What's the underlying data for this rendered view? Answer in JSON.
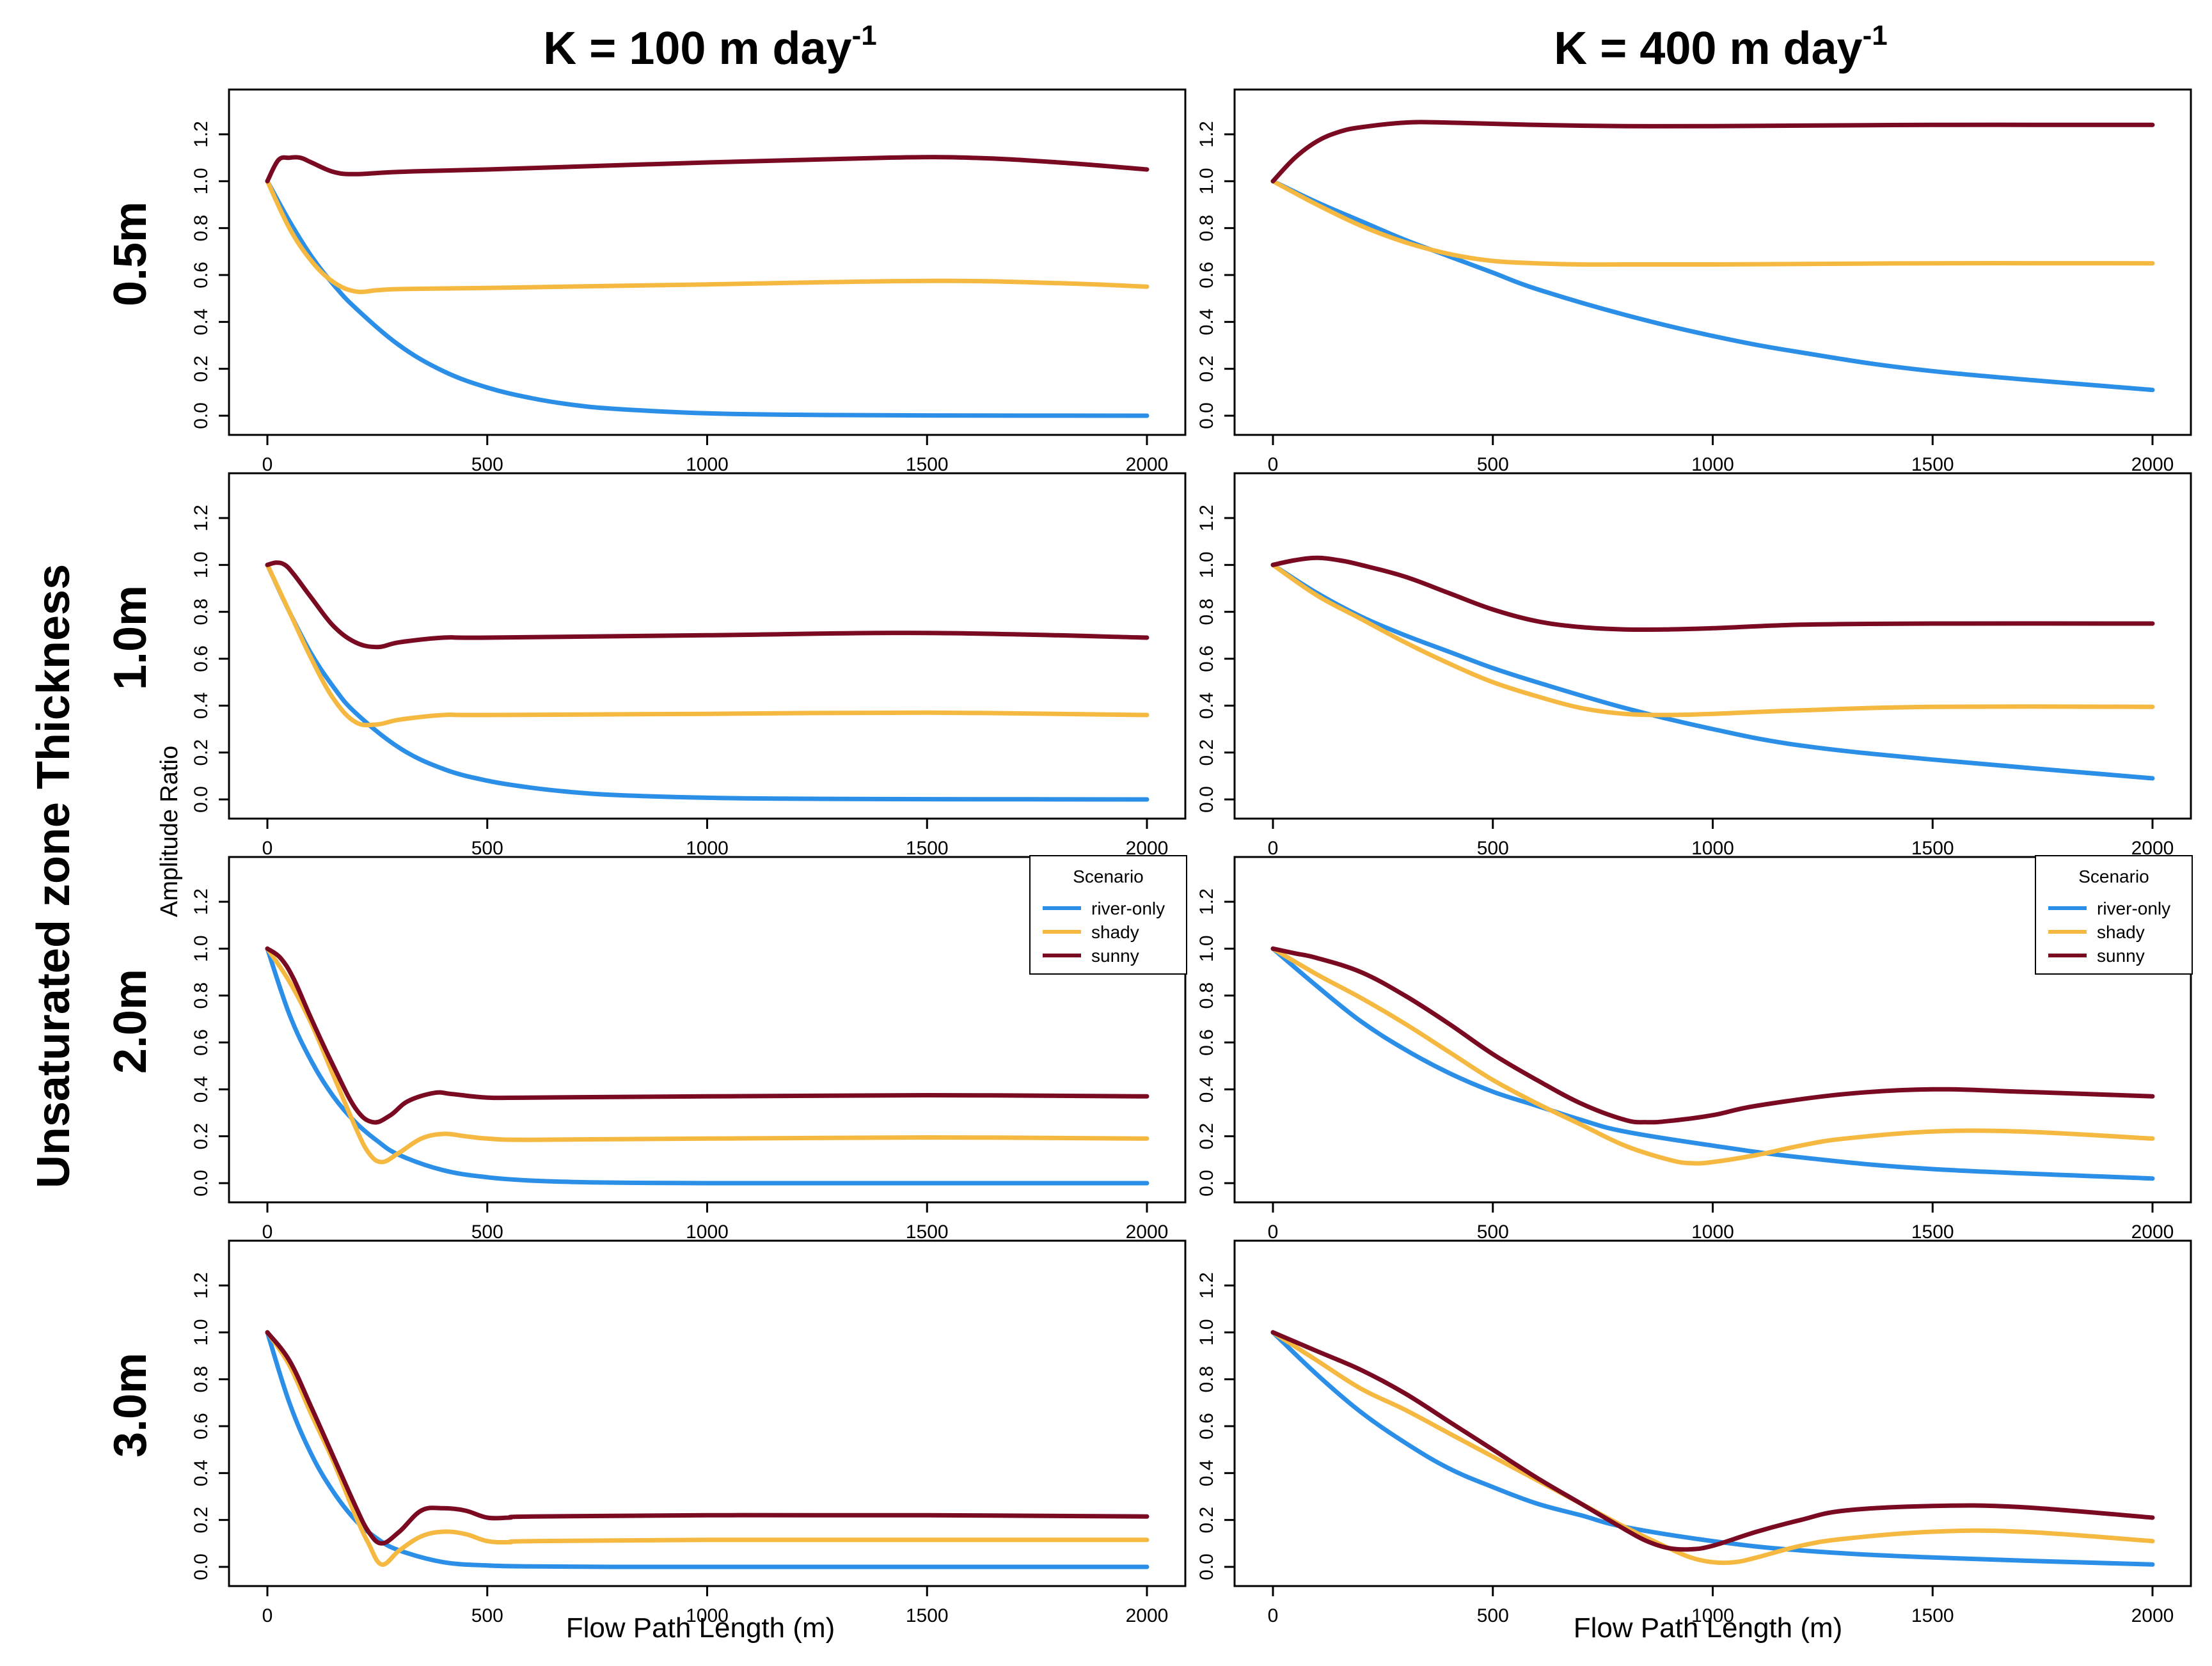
{
  "figure": {
    "col_titles": [
      {
        "main": "K = 100 m day",
        "sup": "-1"
      },
      {
        "main": "K = 400 m day",
        "sup": "-1"
      }
    ],
    "row_labels": [
      "0.5m",
      "1.0m",
      "2.0m",
      "3.0m"
    ],
    "big_ylabel": "Unsaturated zone Thickness",
    "ylabel": "Amplitude Ratio",
    "xlabel": "Flow Path Length (m)"
  },
  "legend": {
    "title": "Scenario",
    "entries": [
      "river-only",
      "shady",
      "sunny"
    ]
  },
  "colors": {
    "river-only": "#2B8FE8",
    "shady": "#F5B942",
    "sunny": "#7A0A22"
  },
  "chart_data": [
    {
      "type": "line",
      "row": 0,
      "col": 0,
      "xlim": [
        0,
        2000
      ],
      "ylim": [
        0,
        1.2
      ],
      "x_ticks": [
        0,
        500,
        1000,
        1500,
        2000
      ],
      "y_ticks": [
        0.0,
        0.2,
        0.4,
        0.6,
        0.8,
        1.0,
        1.2
      ],
      "legend": false,
      "series": [
        {
          "name": "river-only",
          "x": [
            0,
            50,
            100,
            150,
            200,
            300,
            400,
            500,
            600,
            700,
            800,
            1000,
            1200,
            1500,
            2000
          ],
          "y": [
            1.0,
            0.83,
            0.68,
            0.56,
            0.46,
            0.3,
            0.19,
            0.12,
            0.075,
            0.045,
            0.028,
            0.01,
            0.004,
            0.001,
            0.0
          ]
        },
        {
          "name": "shady",
          "x": [
            0,
            50,
            100,
            150,
            200,
            250,
            300,
            500,
            1000,
            1500,
            1800,
            2000
          ],
          "y": [
            1.0,
            0.8,
            0.66,
            0.57,
            0.53,
            0.535,
            0.54,
            0.545,
            0.56,
            0.575,
            0.565,
            0.55
          ]
        },
        {
          "name": "sunny",
          "x": [
            0,
            25,
            50,
            75,
            100,
            150,
            200,
            300,
            500,
            1000,
            1400,
            1600,
            1800,
            2000
          ],
          "y": [
            1.0,
            1.09,
            1.1,
            1.1,
            1.08,
            1.04,
            1.03,
            1.04,
            1.05,
            1.08,
            1.1,
            1.1,
            1.08,
            1.05
          ]
        }
      ]
    },
    {
      "type": "line",
      "row": 0,
      "col": 1,
      "xlim": [
        0,
        2000
      ],
      "ylim": [
        0,
        1.2
      ],
      "x_ticks": [
        0,
        500,
        1000,
        1500,
        2000
      ],
      "y_ticks": [
        0.0,
        0.2,
        0.4,
        0.6,
        0.8,
        1.0,
        1.2
      ],
      "legend": false,
      "series": [
        {
          "name": "river-only",
          "x": [
            0,
            100,
            200,
            300,
            400,
            500,
            600,
            800,
            1000,
            1200,
            1500,
            2000
          ],
          "y": [
            1.0,
            0.91,
            0.83,
            0.75,
            0.68,
            0.61,
            0.54,
            0.43,
            0.34,
            0.27,
            0.19,
            0.11
          ]
        },
        {
          "name": "shady",
          "x": [
            0,
            100,
            200,
            300,
            400,
            500,
            600,
            700,
            800,
            1000,
            1500,
            2000
          ],
          "y": [
            1.0,
            0.9,
            0.81,
            0.74,
            0.69,
            0.66,
            0.65,
            0.645,
            0.645,
            0.645,
            0.65,
            0.65
          ]
        },
        {
          "name": "sunny",
          "x": [
            0,
            50,
            100,
            150,
            200,
            300,
            400,
            600,
            800,
            1000,
            1500,
            2000
          ],
          "y": [
            1.0,
            1.1,
            1.17,
            1.21,
            1.23,
            1.25,
            1.25,
            1.24,
            1.235,
            1.235,
            1.24,
            1.24
          ]
        }
      ]
    },
    {
      "type": "line",
      "row": 1,
      "col": 0,
      "xlim": [
        0,
        2000
      ],
      "ylim": [
        0,
        1.2
      ],
      "x_ticks": [
        0,
        500,
        1000,
        1500,
        2000
      ],
      "y_ticks": [
        0.0,
        0.2,
        0.4,
        0.6,
        0.8,
        1.0,
        1.2
      ],
      "legend": false,
      "series": [
        {
          "name": "river-only",
          "x": [
            0,
            50,
            100,
            150,
            200,
            300,
            400,
            500,
            600,
            700,
            800,
            1000,
            1200,
            1500,
            2000
          ],
          "y": [
            1.0,
            0.8,
            0.62,
            0.48,
            0.37,
            0.22,
            0.13,
            0.08,
            0.05,
            0.03,
            0.018,
            0.007,
            0.003,
            0.001,
            0.0
          ]
        },
        {
          "name": "shady",
          "x": [
            0,
            50,
            100,
            150,
            200,
            250,
            300,
            400,
            500,
            1000,
            1500,
            2000
          ],
          "y": [
            1.0,
            0.8,
            0.6,
            0.43,
            0.33,
            0.32,
            0.34,
            0.36,
            0.36,
            0.365,
            0.37,
            0.36
          ]
        },
        {
          "name": "sunny",
          "x": [
            0,
            20,
            40,
            60,
            100,
            150,
            200,
            250,
            300,
            400,
            500,
            1000,
            1500,
            2000
          ],
          "y": [
            1.0,
            1.01,
            1.0,
            0.96,
            0.86,
            0.74,
            0.67,
            0.65,
            0.67,
            0.69,
            0.69,
            0.7,
            0.71,
            0.69
          ]
        }
      ]
    },
    {
      "type": "line",
      "row": 1,
      "col": 1,
      "xlim": [
        0,
        2000
      ],
      "ylim": [
        0,
        1.2
      ],
      "x_ticks": [
        0,
        500,
        1000,
        1500,
        2000
      ],
      "y_ticks": [
        0.0,
        0.2,
        0.4,
        0.6,
        0.8,
        1.0,
        1.2
      ],
      "legend": false,
      "series": [
        {
          "name": "river-only",
          "x": [
            0,
            100,
            200,
            300,
            400,
            500,
            600,
            800,
            1000,
            1200,
            1500,
            2000
          ],
          "y": [
            1.0,
            0.88,
            0.78,
            0.7,
            0.63,
            0.56,
            0.5,
            0.39,
            0.3,
            0.23,
            0.17,
            0.09
          ]
        },
        {
          "name": "shady",
          "x": [
            0,
            100,
            200,
            300,
            400,
            500,
            600,
            700,
            800,
            900,
            1000,
            1200,
            1500,
            2000
          ],
          "y": [
            1.0,
            0.87,
            0.77,
            0.67,
            0.58,
            0.5,
            0.44,
            0.39,
            0.365,
            0.36,
            0.365,
            0.38,
            0.395,
            0.395
          ]
        },
        {
          "name": "sunny",
          "x": [
            0,
            50,
            100,
            150,
            200,
            300,
            400,
            500,
            600,
            700,
            800,
            900,
            1000,
            1200,
            1500,
            2000
          ],
          "y": [
            1.0,
            1.02,
            1.03,
            1.02,
            1.0,
            0.95,
            0.88,
            0.81,
            0.76,
            0.735,
            0.725,
            0.725,
            0.73,
            0.745,
            0.75,
            0.75
          ]
        }
      ]
    },
    {
      "type": "line",
      "row": 2,
      "col": 0,
      "xlim": [
        0,
        2000
      ],
      "ylim": [
        0,
        1.2
      ],
      "x_ticks": [
        0,
        500,
        1000,
        1500,
        2000
      ],
      "y_ticks": [
        0.0,
        0.2,
        0.4,
        0.6,
        0.8,
        1.0,
        1.2
      ],
      "legend": true,
      "series": [
        {
          "name": "river-only",
          "x": [
            0,
            50,
            100,
            150,
            200,
            250,
            300,
            400,
            500,
            600,
            700,
            800,
            1000,
            1500,
            2000
          ],
          "y": [
            1.0,
            0.72,
            0.52,
            0.37,
            0.26,
            0.18,
            0.12,
            0.055,
            0.025,
            0.011,
            0.005,
            0.002,
            0.0,
            0.0,
            0.0
          ]
        },
        {
          "name": "shady",
          "x": [
            0,
            50,
            100,
            150,
            200,
            230,
            260,
            300,
            350,
            400,
            450,
            500,
            600,
            1000,
            1500,
            2000
          ],
          "y": [
            1.0,
            0.86,
            0.68,
            0.46,
            0.24,
            0.13,
            0.09,
            0.13,
            0.19,
            0.21,
            0.2,
            0.19,
            0.185,
            0.19,
            0.195,
            0.19
          ]
        },
        {
          "name": "sunny",
          "x": [
            0,
            30,
            60,
            100,
            150,
            200,
            240,
            280,
            320,
            380,
            420,
            500,
            600,
            1000,
            1500,
            2000
          ],
          "y": [
            1.0,
            0.96,
            0.87,
            0.7,
            0.5,
            0.32,
            0.26,
            0.29,
            0.35,
            0.385,
            0.38,
            0.365,
            0.365,
            0.37,
            0.375,
            0.37
          ]
        }
      ]
    },
    {
      "type": "line",
      "row": 2,
      "col": 1,
      "xlim": [
        0,
        2000
      ],
      "ylim": [
        0,
        1.2
      ],
      "x_ticks": [
        0,
        500,
        1000,
        1500,
        2000
      ],
      "y_ticks": [
        0.0,
        0.2,
        0.4,
        0.6,
        0.8,
        1.0,
        1.2
      ],
      "legend": true,
      "series": [
        {
          "name": "river-only",
          "x": [
            0,
            100,
            200,
            300,
            400,
            500,
            600,
            700,
            800,
            1000,
            1200,
            1500,
            2000
          ],
          "y": [
            1.0,
            0.84,
            0.69,
            0.57,
            0.47,
            0.39,
            0.33,
            0.27,
            0.22,
            0.16,
            0.11,
            0.06,
            0.02
          ]
        },
        {
          "name": "shady",
          "x": [
            0,
            100,
            200,
            300,
            400,
            500,
            600,
            700,
            800,
            900,
            950,
            1000,
            1100,
            1200,
            1300,
            1500,
            1700,
            2000
          ],
          "y": [
            1.0,
            0.89,
            0.79,
            0.68,
            0.56,
            0.44,
            0.34,
            0.25,
            0.16,
            0.1,
            0.085,
            0.09,
            0.12,
            0.16,
            0.19,
            0.22,
            0.22,
            0.19
          ]
        },
        {
          "name": "sunny",
          "x": [
            0,
            50,
            100,
            200,
            300,
            400,
            500,
            600,
            700,
            800,
            850,
            900,
            1000,
            1100,
            1300,
            1500,
            1700,
            2000
          ],
          "y": [
            1.0,
            0.98,
            0.96,
            0.9,
            0.8,
            0.68,
            0.55,
            0.44,
            0.34,
            0.27,
            0.26,
            0.265,
            0.29,
            0.33,
            0.38,
            0.4,
            0.39,
            0.37
          ]
        }
      ]
    },
    {
      "type": "line",
      "row": 3,
      "col": 0,
      "xlim": [
        0,
        2000
      ],
      "ylim": [
        0,
        1.2
      ],
      "x_ticks": [
        0,
        500,
        1000,
        1500,
        2000
      ],
      "y_ticks": [
        0.0,
        0.2,
        0.4,
        0.6,
        0.8,
        1.0,
        1.2
      ],
      "legend": false,
      "series": [
        {
          "name": "river-only",
          "x": [
            0,
            50,
            100,
            150,
            200,
            250,
            300,
            400,
            500,
            600,
            800,
            1000,
            1500,
            2000
          ],
          "y": [
            1.0,
            0.7,
            0.48,
            0.32,
            0.2,
            0.12,
            0.07,
            0.02,
            0.006,
            0.002,
            0.0,
            0.0,
            0.0,
            0.0
          ]
        },
        {
          "name": "shady",
          "x": [
            0,
            50,
            100,
            150,
            200,
            230,
            260,
            300,
            350,
            400,
            450,
            500,
            550,
            600,
            1000,
            1500,
            2000
          ],
          "y": [
            1.0,
            0.86,
            0.65,
            0.45,
            0.22,
            0.1,
            0.01,
            0.07,
            0.13,
            0.15,
            0.14,
            0.11,
            0.105,
            0.11,
            0.115,
            0.115,
            0.115
          ]
        },
        {
          "name": "sunny",
          "x": [
            0,
            50,
            100,
            150,
            200,
            230,
            260,
            300,
            350,
            400,
            450,
            500,
            550,
            600,
            1000,
            1500,
            2000
          ],
          "y": [
            1.0,
            0.88,
            0.68,
            0.47,
            0.26,
            0.15,
            0.1,
            0.15,
            0.24,
            0.25,
            0.24,
            0.21,
            0.21,
            0.215,
            0.22,
            0.22,
            0.215
          ]
        }
      ]
    },
    {
      "type": "line",
      "row": 3,
      "col": 1,
      "xlim": [
        0,
        2000
      ],
      "ylim": [
        0,
        1.2
      ],
      "x_ticks": [
        0,
        500,
        1000,
        1500,
        2000
      ],
      "y_ticks": [
        0.0,
        0.2,
        0.4,
        0.6,
        0.8,
        1.0,
        1.2
      ],
      "legend": false,
      "series": [
        {
          "name": "river-only",
          "x": [
            0,
            100,
            200,
            300,
            400,
            500,
            600,
            700,
            800,
            1000,
            1200,
            1500,
            2000
          ],
          "y": [
            1.0,
            0.82,
            0.66,
            0.53,
            0.42,
            0.34,
            0.27,
            0.22,
            0.17,
            0.11,
            0.07,
            0.04,
            0.01
          ]
        },
        {
          "name": "shady",
          "x": [
            0,
            100,
            200,
            300,
            400,
            500,
            600,
            700,
            800,
            900,
            950,
            1000,
            1050,
            1100,
            1200,
            1300,
            1500,
            1700,
            2000
          ],
          "y": [
            1.0,
            0.88,
            0.76,
            0.67,
            0.57,
            0.47,
            0.37,
            0.27,
            0.17,
            0.08,
            0.04,
            0.02,
            0.02,
            0.04,
            0.09,
            0.12,
            0.15,
            0.15,
            0.11
          ]
        },
        {
          "name": "sunny",
          "x": [
            0,
            100,
            200,
            300,
            400,
            500,
            600,
            700,
            800,
            850,
            900,
            950,
            1000,
            1100,
            1200,
            1300,
            1500,
            1700,
            2000
          ],
          "y": [
            1.0,
            0.92,
            0.84,
            0.74,
            0.62,
            0.5,
            0.38,
            0.27,
            0.16,
            0.11,
            0.08,
            0.075,
            0.09,
            0.15,
            0.2,
            0.24,
            0.26,
            0.255,
            0.21
          ]
        }
      ]
    }
  ]
}
